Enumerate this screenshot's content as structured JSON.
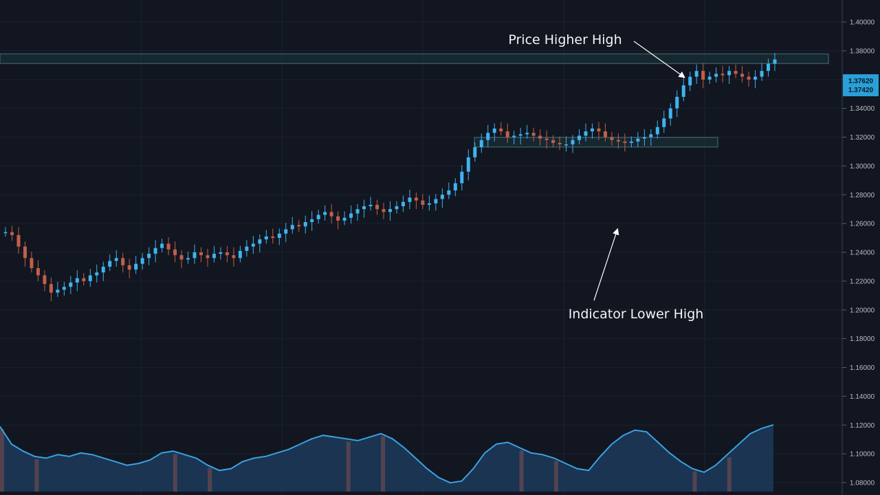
{
  "chart_data": {
    "type": "candlestick",
    "title": "",
    "xlabel": "",
    "ylabel": "",
    "grid": true,
    "colors": {
      "background": "#121620",
      "grid": "#1b2130",
      "up": "#3fb3f0",
      "down": "#c0604a",
      "level_line": "#5fa6a8",
      "indicator_line": "#3aa2e3",
      "indicator_fill": "#1d3f63",
      "price_tag_bg": "#2a9fd8",
      "annotation_text": "#f2f4f7"
    },
    "y_axis": {
      "position": "right",
      "tick_labels": [
        "1.40000",
        "1.38000",
        "1.36000",
        "1.34000",
        "1.32000",
        "1.30000",
        "1.28000",
        "1.26000",
        "1.24000",
        "1.22000",
        "1.20000",
        "1.18000",
        "1.16000",
        "1.14000",
        "1.12000",
        "1.10000",
        "1.08000"
      ],
      "current_price_tag": [
        "1.37620",
        "1.37420"
      ]
    },
    "series": [
      {
        "type": "candles",
        "close": [
          1.254,
          1.252,
          1.244,
          1.236,
          1.229,
          1.224,
          1.218,
          1.212,
          1.214,
          1.216,
          1.219,
          1.222,
          1.22,
          1.224,
          1.226,
          1.23,
          1.234,
          1.236,
          1.231,
          1.228,
          1.232,
          1.236,
          1.239,
          1.243,
          1.246,
          1.242,
          1.238,
          1.235,
          1.236,
          1.24,
          1.238,
          1.236,
          1.239,
          1.24,
          1.238,
          1.236,
          1.241,
          1.244,
          1.246,
          1.249,
          1.251,
          1.25,
          1.253,
          1.256,
          1.259,
          1.258,
          1.261,
          1.263,
          1.266,
          1.268,
          1.265,
          1.262,
          1.264,
          1.267,
          1.27,
          1.272,
          1.273,
          1.27,
          1.268,
          1.27,
          1.272,
          1.275,
          1.278,
          1.276,
          1.273,
          1.274,
          1.277,
          1.28,
          1.283,
          1.288,
          1.296,
          1.306,
          1.313,
          1.318,
          1.323,
          1.326,
          1.324,
          1.32,
          1.321,
          1.322,
          1.323,
          1.321,
          1.319,
          1.318,
          1.316,
          1.315,
          1.315,
          1.318,
          1.321,
          1.324,
          1.326,
          1.324,
          1.32,
          1.318,
          1.317,
          1.316,
          1.317,
          1.319,
          1.32,
          1.322,
          1.327,
          1.333,
          1.34,
          1.348,
          1.356,
          1.362,
          1.366,
          1.36,
          1.362,
          1.364,
          1.363,
          1.366,
          1.364,
          1.362,
          1.36,
          1.362,
          1.366,
          1.371,
          1.374
        ]
      },
      {
        "type": "indicator",
        "values": [
          62,
          52,
          48,
          45,
          44,
          46,
          45,
          47,
          46,
          44,
          42,
          40,
          41,
          43,
          47,
          48,
          46,
          44,
          40,
          37,
          38,
          42,
          44,
          45,
          47,
          49,
          52,
          55,
          57,
          56,
          55,
          54,
          56,
          58,
          55,
          50,
          44,
          38,
          33,
          30,
          31,
          38,
          47,
          52,
          53,
          50,
          47,
          46,
          44,
          41,
          38,
          37,
          45,
          52,
          57,
          60,
          59,
          53,
          47,
          42,
          38,
          36,
          40,
          46,
          52,
          58,
          61,
          63
        ]
      }
    ],
    "levels": [
      {
        "value": 1.3745,
        "label": "Price Higher High"
      },
      {
        "value": 1.3165,
        "label": "Indicator Lower High"
      }
    ],
    "annotations": [
      {
        "text": "Price Higher High",
        "target": "price-high"
      },
      {
        "text": "Indicator Lower High",
        "target": "indicator-high"
      }
    ]
  }
}
